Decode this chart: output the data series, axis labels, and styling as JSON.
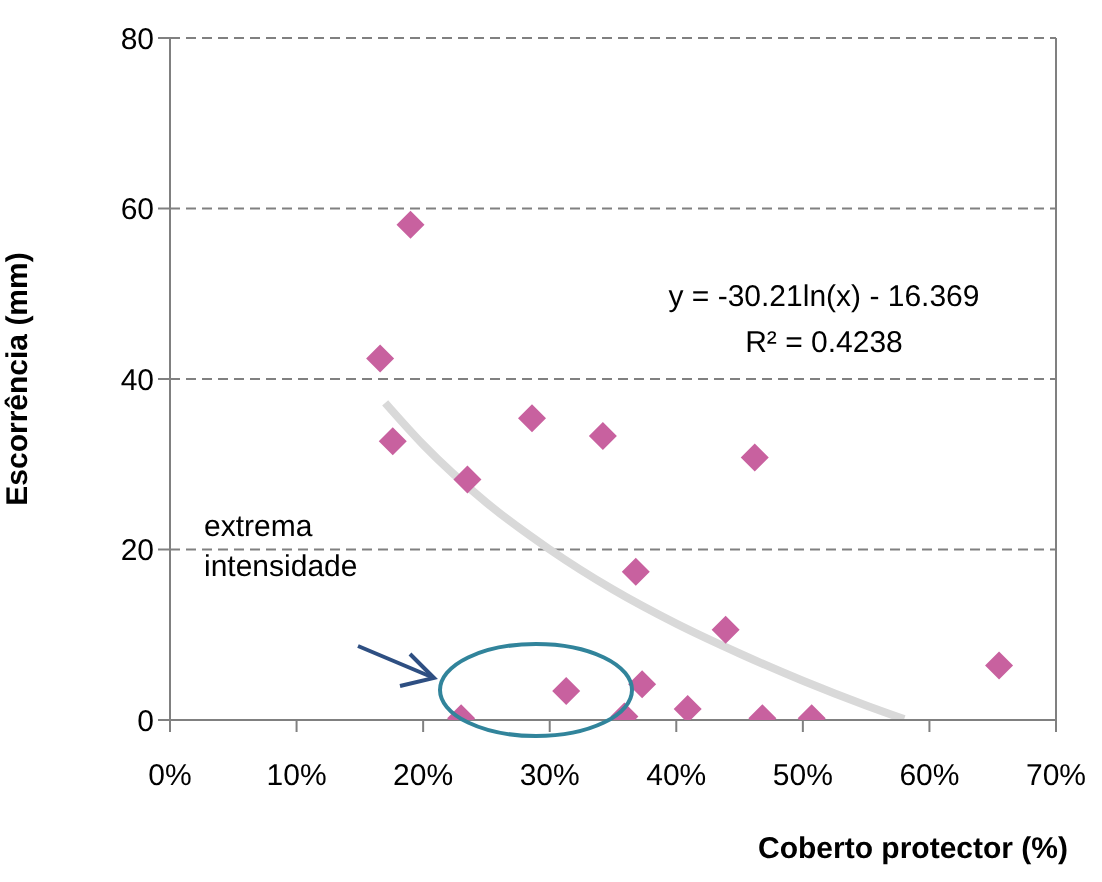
{
  "chart_data": {
    "type": "scatter",
    "xlabel": "Coberto protector (%)",
    "ylabel": "Escorrência (mm)",
    "xlim": [
      0,
      70
    ],
    "xticks": [
      {
        "value": 0,
        "label": "0%"
      },
      {
        "value": 10,
        "label": "10%"
      },
      {
        "value": 20,
        "label": "20%"
      },
      {
        "value": 30,
        "label": "30%"
      },
      {
        "value": 40,
        "label": "40%"
      },
      {
        "value": 50,
        "label": "50%"
      },
      {
        "value": 60,
        "label": "60%"
      },
      {
        "value": 70,
        "label": "70%"
      }
    ],
    "ylim": [
      0,
      80
    ],
    "yticks": [
      0,
      20,
      40,
      60,
      80
    ],
    "grid": "y",
    "marker": "diamond",
    "annotations": [
      "y = -30.21ln(x) - 16.369",
      "R² = 0.4238",
      "extrema intensidade"
    ],
    "series": [
      {
        "color": "#c8619f",
        "x": [
          16.6,
          19.0,
          17.6,
          23.5,
          28.6,
          34.2,
          36.8,
          23.0,
          31.3,
          35.9,
          37.3,
          40.9,
          46.2,
          43.9,
          46.8,
          50.7,
          65.5
        ],
        "values": [
          42.4,
          58.1,
          32.7,
          28.2,
          35.4,
          33.3,
          17.4,
          0.2,
          3.4,
          0.4,
          4.2,
          1.3,
          30.8,
          10.6,
          0.2,
          0.2,
          6.4
        ]
      },
      {
        "type": "line",
        "color": "#d9d9d9",
        "marker": "none",
        "x": [
          17,
          20,
          25,
          30,
          35,
          40,
          45,
          50,
          55,
          58
        ],
        "values": [
          37.2,
          32.3,
          25.5,
          20.0,
          15.3,
          11.3,
          7.8,
          4.6,
          1.7,
          0.1
        ]
      }
    ]
  }
}
